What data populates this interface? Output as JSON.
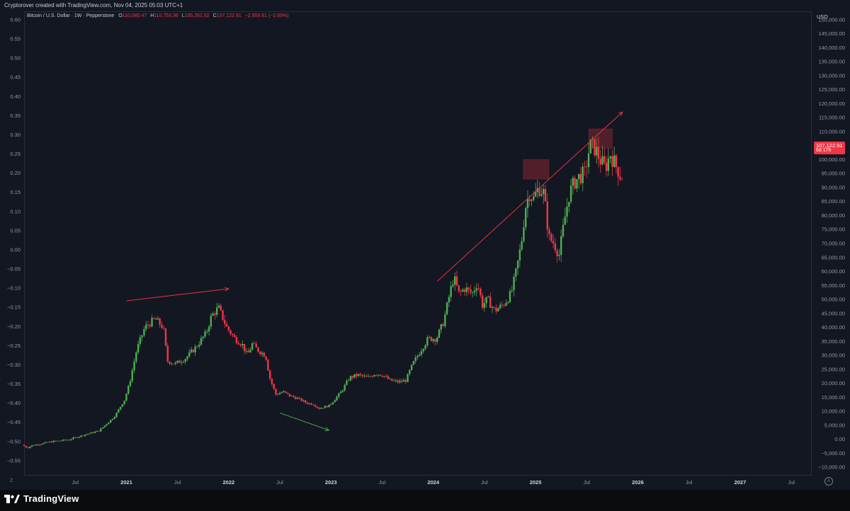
{
  "header": {
    "text": "Cryptorover created with TradingView.com, Nov 04, 2025 05:03 UTC+1"
  },
  "legend": {
    "symbol": "Bitcoin / U.S. Dollar · 1W · Pepperstone",
    "o_label": "O",
    "o_value": "110,080.47",
    "h_label": "H",
    "h_value": "110,753.36",
    "l_label": "L",
    "l_value": "105,261.52",
    "c_label": "C",
    "c_value": "107,122.91",
    "change": "−2,959.61 (−2.69%)"
  },
  "right_axis": {
    "currency": "USD",
    "price_tag_value": "107,122.91",
    "price_tag_time": "6d 17h"
  },
  "footer": {
    "brand": "TradingView"
  },
  "controls": {
    "z": "Z",
    "a": "A"
  },
  "colors": {
    "up": "#4caf50",
    "down": "#f23645",
    "bg": "#131722",
    "grid": "#1e222d",
    "accent": "#f23645",
    "trend_up": "#f23645",
    "trend_down": "#4caf50"
  },
  "chart_data": {
    "type": "candlestick",
    "title": "Bitcoin / U.S. Dollar · 1W · Pepperstone",
    "left_axis_ticks": [
      "0.60",
      "0.55",
      "0.50",
      "0.45",
      "0.40",
      "0.35",
      "0.30",
      "0.25",
      "0.20",
      "0.15",
      "0.10",
      "0.05",
      "0.00",
      "−0.05",
      "−0.10",
      "−0.15",
      "−0.20",
      "−0.25",
      "−0.30",
      "−0.35",
      "−0.40",
      "−0.45",
      "−0.50",
      "−0.55"
    ],
    "right_axis_ticks": [
      "150,000.00",
      "145,000.00",
      "140,000.00",
      "135,000.00",
      "130,000.00",
      "125,000.00",
      "120,000.00",
      "115,000.00",
      "110,000.00",
      "105,000.00",
      "100,000.00",
      "95,000.00",
      "90,000.00",
      "85,000.00",
      "80,000.00",
      "75,000.00",
      "70,000.00",
      "65,000.00",
      "60,000.00",
      "55,000.00",
      "50,000.00",
      "45,000.00",
      "40,000.00",
      "35,000.00",
      "30,000.00",
      "25,000.00",
      "20,000.00",
      "15,000.00",
      "10,000.00",
      "5,000.00",
      "0.00",
      "−5,000.00",
      "−10,000.00"
    ],
    "time_ticks": [
      {
        "label": "Jul",
        "t": 2020.5,
        "bold": false
      },
      {
        "label": "2021",
        "t": 2021.0,
        "bold": true
      },
      {
        "label": "Jul",
        "t": 2021.5,
        "bold": false
      },
      {
        "label": "2022",
        "t": 2022.0,
        "bold": true
      },
      {
        "label": "Jul",
        "t": 2022.5,
        "bold": false
      },
      {
        "label": "2023",
        "t": 2023.0,
        "bold": true
      },
      {
        "label": "Jul",
        "t": 2023.5,
        "bold": false
      },
      {
        "label": "2024",
        "t": 2024.0,
        "bold": true
      },
      {
        "label": "Jul",
        "t": 2024.5,
        "bold": false
      },
      {
        "label": "2025",
        "t": 2025.0,
        "bold": true
      },
      {
        "label": "Jul",
        "t": 2025.5,
        "bold": false
      },
      {
        "label": "2026",
        "t": 2026.0,
        "bold": true
      },
      {
        "label": "Jul",
        "t": 2026.5,
        "bold": false
      },
      {
        "label": "2027",
        "t": 2027.0,
        "bold": true
      },
      {
        "label": "Jul",
        "t": 2027.5,
        "bold": false
      }
    ],
    "price_range": [
      -13000,
      153000
    ],
    "time_range": [
      2020.0,
      2027.7
    ],
    "grid": false,
    "series_anchors": [
      [
        2020.0,
        -2000
      ],
      [
        2020.05,
        -3000
      ],
      [
        2020.1,
        -2200
      ],
      [
        2020.2,
        -1500
      ],
      [
        2020.3,
        -800
      ],
      [
        2020.45,
        -200
      ],
      [
        2020.6,
        1500
      ],
      [
        2020.75,
        3000
      ],
      [
        2020.9,
        8000
      ],
      [
        2021.0,
        14000
      ],
      [
        2021.05,
        20000
      ],
      [
        2021.12,
        32000
      ],
      [
        2021.2,
        40000
      ],
      [
        2021.3,
        43000
      ],
      [
        2021.38,
        40000
      ],
      [
        2021.42,
        28000
      ],
      [
        2021.5,
        27000
      ],
      [
        2021.6,
        29000
      ],
      [
        2021.7,
        33000
      ],
      [
        2021.8,
        38000
      ],
      [
        2021.85,
        44000
      ],
      [
        2021.92,
        47000
      ],
      [
        2022.0,
        40000
      ],
      [
        2022.08,
        36000
      ],
      [
        2022.15,
        34000
      ],
      [
        2022.2,
        30000
      ],
      [
        2022.25,
        34000
      ],
      [
        2022.3,
        32000
      ],
      [
        2022.38,
        30000
      ],
      [
        2022.42,
        22000
      ],
      [
        2022.48,
        16000
      ],
      [
        2022.55,
        17000
      ],
      [
        2022.62,
        15500
      ],
      [
        2022.7,
        14500
      ],
      [
        2022.78,
        13000
      ],
      [
        2022.85,
        12500
      ],
      [
        2022.9,
        11000
      ],
      [
        2022.95,
        11500
      ],
      [
        2023.0,
        12000
      ],
      [
        2023.05,
        14000
      ],
      [
        2023.12,
        17000
      ],
      [
        2023.2,
        22000
      ],
      [
        2023.28,
        23000
      ],
      [
        2023.38,
        22000
      ],
      [
        2023.45,
        23500
      ],
      [
        2023.52,
        23000
      ],
      [
        2023.6,
        21000
      ],
      [
        2023.68,
        20500
      ],
      [
        2023.75,
        21000
      ],
      [
        2023.82,
        27000
      ],
      [
        2023.9,
        32000
      ],
      [
        2023.97,
        36000
      ],
      [
        2024.05,
        36000
      ],
      [
        2024.12,
        42000
      ],
      [
        2024.18,
        52000
      ],
      [
        2024.22,
        58000
      ],
      [
        2024.27,
        52000
      ],
      [
        2024.33,
        54000
      ],
      [
        2024.4,
        52000
      ],
      [
        2024.45,
        56000
      ],
      [
        2024.5,
        48000
      ],
      [
        2024.55,
        50000
      ],
      [
        2024.62,
        46000
      ],
      [
        2024.7,
        48000
      ],
      [
        2024.78,
        52000
      ],
      [
        2024.83,
        60000
      ],
      [
        2024.88,
        70000
      ],
      [
        2024.92,
        83000
      ],
      [
        2024.96,
        88000
      ],
      [
        2025.0,
        86000
      ],
      [
        2025.05,
        90000
      ],
      [
        2025.1,
        88000
      ],
      [
        2025.15,
        72000
      ],
      [
        2025.2,
        70000
      ],
      [
        2025.25,
        66000
      ],
      [
        2025.3,
        78000
      ],
      [
        2025.35,
        88000
      ],
      [
        2025.4,
        92000
      ],
      [
        2025.45,
        94000
      ],
      [
        2025.5,
        95000
      ],
      [
        2025.55,
        105000
      ],
      [
        2025.6,
        104000
      ],
      [
        2025.65,
        100000
      ],
      [
        2025.7,
        97000
      ],
      [
        2025.75,
        102000
      ],
      [
        2025.8,
        98000
      ],
      [
        2025.83,
        96000
      ],
      [
        2025.85,
        94000
      ]
    ],
    "annotations": [
      {
        "type": "trendline",
        "color": "#f23645",
        "p1": [
          2021.0,
          49500
        ],
        "p2": [
          2022.0,
          53800
        ],
        "arrow": true
      },
      {
        "type": "trendline",
        "color": "#4caf50",
        "p1": [
          2022.5,
          9400
        ],
        "p2": [
          2022.98,
          3200
        ],
        "arrow": true
      },
      {
        "type": "trendline",
        "color": "#f23645",
        "p1": [
          2024.04,
          56500
        ],
        "p2": [
          2025.85,
          117000
        ],
        "arrow": true
      },
      {
        "type": "box",
        "color": "#f23645",
        "t1": 2024.88,
        "t2": 2025.13,
        "p1": 93000,
        "p2": 100000
      },
      {
        "type": "box",
        "color": "#f23645",
        "t1": 2025.52,
        "t2": 2025.75,
        "p1": 104000,
        "p2": 111000
      }
    ]
  }
}
